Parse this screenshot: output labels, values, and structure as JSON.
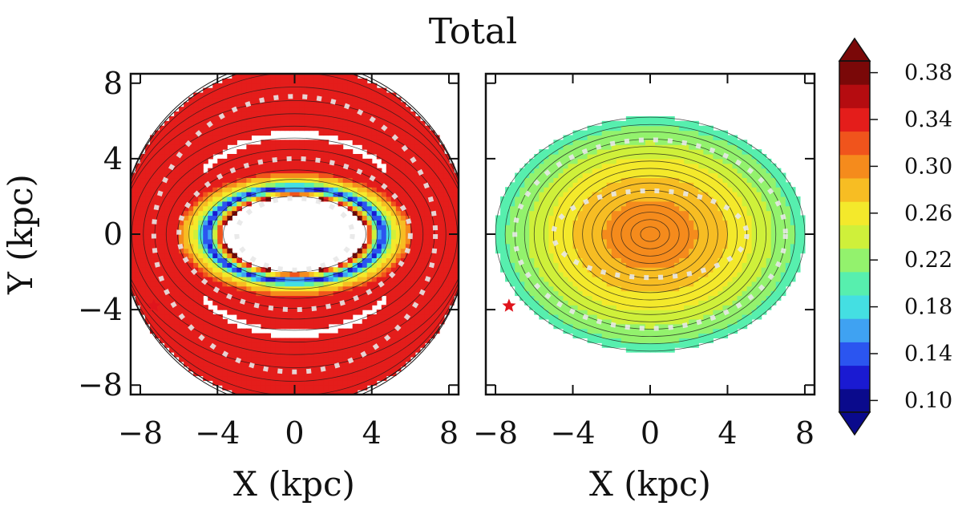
{
  "chart_data": {
    "type": "heatmap",
    "title": "Total",
    "colorbar": {
      "levels": [
        0.1,
        0.12,
        0.14,
        0.16,
        0.18,
        0.2,
        0.22,
        0.24,
        0.26,
        0.28,
        0.3,
        0.32,
        0.34,
        0.36,
        0.38,
        0.4
      ],
      "tick_values": [
        0.1,
        0.14,
        0.18,
        0.22,
        0.26,
        0.3,
        0.34,
        0.38
      ],
      "tick_labels": [
        "0.10",
        "0.14",
        "0.18",
        "0.22",
        "0.26",
        "0.30",
        "0.34",
        "0.38"
      ],
      "colors": [
        "#0a0a8c",
        "#1a1ad2",
        "#2b55f0",
        "#3fa2f2",
        "#44dfe2",
        "#57efae",
        "#93f26d",
        "#cff03a",
        "#f4e92b",
        "#f7bd23",
        "#f58b1c",
        "#f0541c",
        "#e41d1b",
        "#b50c10",
        "#7a0808"
      ],
      "extend": "both"
    },
    "panels": [
      {
        "name": "left",
        "xlabel": "X (kpc)",
        "ylabel": "Y (kpc)",
        "xlim": [
          -8.5,
          8.5
        ],
        "ylim": [
          -8.5,
          8.5
        ],
        "xticks": [
          -8,
          -4,
          0,
          4,
          8
        ],
        "xtick_labels": [
          "−8",
          "−4",
          "0",
          "4",
          "8"
        ],
        "yticks": [
          -8,
          -4,
          0,
          4,
          8
        ],
        "ytick_labels": [
          "−8",
          "−4",
          "0",
          "4",
          "8"
        ],
        "field": {
          "shape": "ring",
          "center": [
            0,
            0
          ],
          "hole_semi_axes": [
            3.7,
            2.0
          ],
          "gap_semi_axes": [
            6.2,
            5.3
          ],
          "outer_radius": 9.0,
          "profile": [
            [
              0.0,
              0.4
            ],
            [
              0.35,
              0.12
            ],
            [
              0.6,
              0.26
            ],
            [
              0.85,
              0.3
            ],
            [
              1.0,
              0.34
            ]
          ]
        },
        "sun_marker": [
          -7.3,
          -3.8
        ],
        "dotted_paths": [
          {
            "kind": "ellipse",
            "semi_axes": [
              3.0,
              1.9
            ]
          },
          {
            "kind": "ellipse",
            "semi_axes": [
              6.0,
              4.0
            ]
          },
          {
            "kind": "ellipse",
            "semi_axes": [
              7.3,
              7.3
            ]
          }
        ]
      },
      {
        "name": "right",
        "xlabel": "X (kpc)",
        "ylabel": "",
        "xlim": [
          -8.5,
          8.5
        ],
        "ylim": [
          -8.5,
          8.5
        ],
        "xticks": [
          -8,
          -4,
          0,
          4,
          8
        ],
        "xtick_labels": [
          "−8",
          "−4",
          "0",
          "4",
          "8"
        ],
        "yticks": [
          -8,
          -4,
          0,
          4,
          8
        ],
        "ytick_labels": [],
        "field": {
          "shape": "disk",
          "center": [
            0.0,
            0.0
          ],
          "semi_axes": [
            8.0,
            6.2
          ],
          "profile": [
            [
              0.0,
              0.32
            ],
            [
              0.3,
              0.3
            ],
            [
              0.6,
              0.27
            ],
            [
              0.85,
              0.23
            ],
            [
              1.0,
              0.21
            ]
          ]
        },
        "sun_marker": [
          -7.3,
          -3.8
        ],
        "dotted_paths": [
          {
            "kind": "ellipse",
            "semi_axes": [
              5.0,
              2.3
            ]
          },
          {
            "kind": "ellipse",
            "semi_axes": [
              7.0,
              5.0
            ]
          }
        ]
      }
    ]
  }
}
